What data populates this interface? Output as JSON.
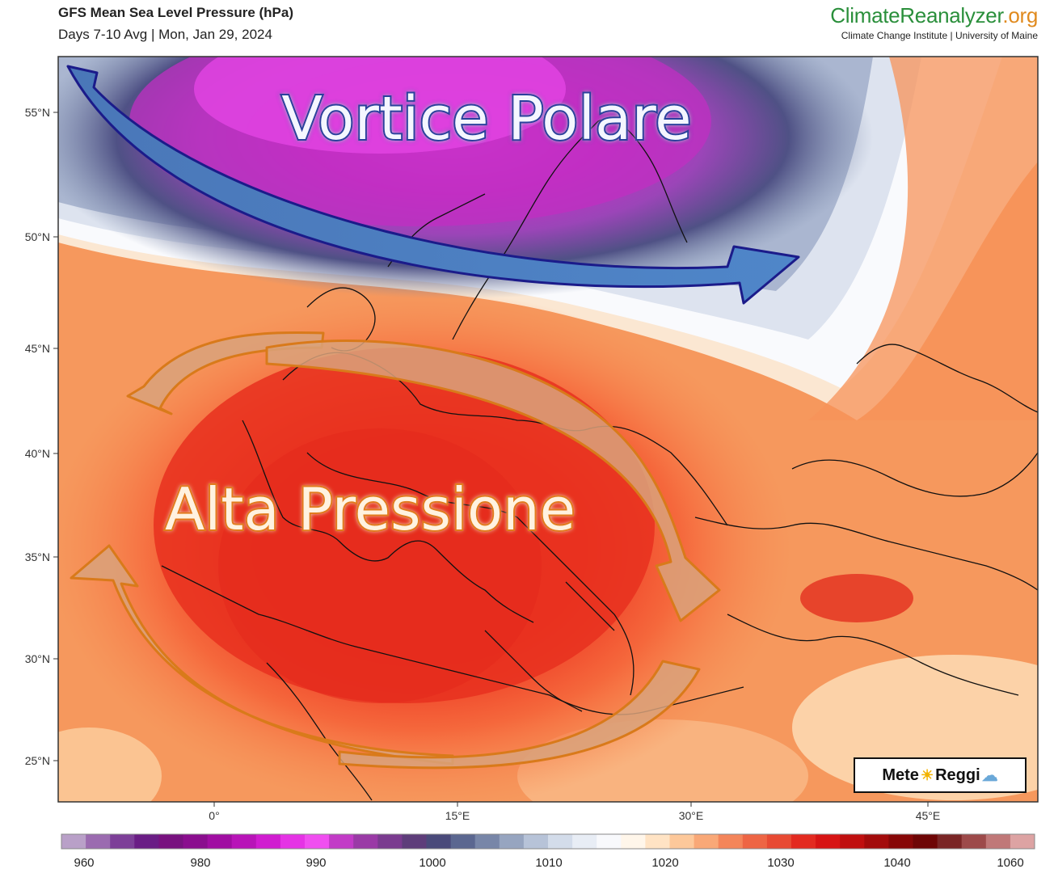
{
  "header": {
    "title": "GFS Mean Sea Level Pressure (hPa)",
    "subtitle": "Days 7-10 Avg | Mon, Jan 29, 2024"
  },
  "brand": {
    "name_a": "ClimateReanalyzer",
    "name_b": ".org",
    "institution": "Climate Change Institute | University of Maine"
  },
  "overlays": {
    "low_label": "Vortice Polare",
    "high_label": "Alta Pressione"
  },
  "lat_labels": [
    "55°N",
    "50°N",
    "45°N",
    "40°N",
    "35°N",
    "30°N",
    "25°N"
  ],
  "lon_labels": [
    "0°",
    "15°E",
    "30°E",
    "45°E"
  ],
  "colorbar": {
    "labels": [
      "960",
      "980",
      "990",
      "1000",
      "1010",
      "1020",
      "1030",
      "1040",
      "1060"
    ],
    "colors": [
      "#b9a0c8",
      "#9b6bb0",
      "#7d3f98",
      "#6a1d85",
      "#78117f",
      "#8a0d8e",
      "#a00da2",
      "#b814b8",
      "#d01cd0",
      "#e533e5",
      "#f04ef0",
      "#c23bc7",
      "#9a3aa6",
      "#7a3b8f",
      "#5e3d7a",
      "#4a4a7a",
      "#5b6790",
      "#7886a8",
      "#97a5c0",
      "#b7c3d8",
      "#d3dcea",
      "#e8edf5",
      "#f8f9fc",
      "#fff6ea",
      "#ffe3c4",
      "#fdc89a",
      "#f9a877",
      "#f4855a",
      "#ee6544",
      "#e84a33",
      "#e32a20",
      "#d71414",
      "#c00f0f",
      "#a30b0b",
      "#870707",
      "#6e0505",
      "#7a2525",
      "#9d4a4a",
      "#c07878",
      "#dda3a3"
    ]
  },
  "badge": {
    "text_a": "Mete",
    "text_b": "Reggi"
  }
}
